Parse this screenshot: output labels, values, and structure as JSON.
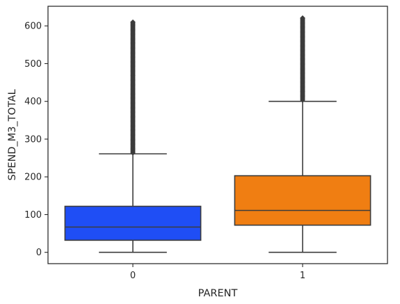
{
  "chart_data": {
    "type": "box",
    "xlabel": "PARENT",
    "ylabel": "SPEND_M3_TOTAL",
    "ylim": [
      -30,
      652
    ],
    "yticks": [
      0,
      100,
      200,
      300,
      400,
      500,
      600
    ],
    "categories": [
      "0",
      "1"
    ],
    "boxes": [
      {
        "category": "0",
        "color": "#1f4ef5",
        "whisker_low": 0,
        "q1": 32,
        "median": 67,
        "q3": 122,
        "whisker_high": 261,
        "outliers_min": 263,
        "outliers_max": 610
      },
      {
        "category": "1",
        "color": "#f07e12",
        "whisker_low": 0,
        "q1": 72,
        "median": 111,
        "q3": 203,
        "whisker_high": 400,
        "outliers_min": 403,
        "outliers_max": 621
      }
    ],
    "line_color": "#3c3c3c",
    "grid": false
  }
}
